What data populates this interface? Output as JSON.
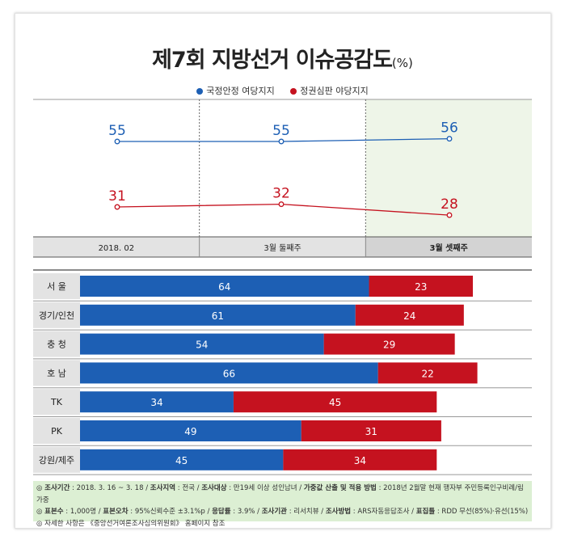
{
  "title": "제7회 지방선거 이슈공감도",
  "title_unit": "(%)",
  "legend": [
    {
      "label": "국정안정 여당지지",
      "color": "#1d5fb4"
    },
    {
      "label": "정권심판 야당지지",
      "color": "#c5121f"
    }
  ],
  "chart_data": [
    {
      "type": "line",
      "categories": [
        "2018. 02",
        "3월 둘째주",
        "3월 셋째주"
      ],
      "series": [
        {
          "name": "국정안정 여당지지",
          "color": "#1d5fb4",
          "values": [
            55,
            55,
            56
          ]
        },
        {
          "name": "정권심판 야당지지",
          "color": "#c5121f",
          "values": [
            31,
            32,
            28
          ]
        }
      ],
      "highlight_category": "3월 셋째주"
    },
    {
      "type": "bar",
      "orientation": "horizontal",
      "stacked": true,
      "categories": [
        "서 울",
        "경기/인천",
        "충 청",
        "호 남",
        "TK",
        "PK",
        "강원/제주"
      ],
      "series": [
        {
          "name": "국정안정 여당지지",
          "color": "#1d5fb4",
          "values": [
            64,
            61,
            54,
            66,
            34,
            49,
            45
          ]
        },
        {
          "name": "정권심판 야당지지",
          "color": "#c5121f",
          "values": [
            23,
            24,
            29,
            22,
            45,
            31,
            34
          ]
        }
      ]
    }
  ],
  "footnote": [
    {
      "items": [
        {
          "key": "조사기간",
          "val": " : 2018. 3. 16 ~ 3. 18 / "
        },
        {
          "key": "조사지역",
          "val": " : 전국 / "
        },
        {
          "key": "조사대상",
          "val": " : 만19세 이상 성인남녀 / "
        },
        {
          "key": "가중값 산출 및 적용 방법",
          "val": " : 2018년 2월말 현재 행자부 주민등록인구비례/림가중"
        }
      ]
    },
    {
      "items": [
        {
          "key": "표본수",
          "val": " : 1,000명 / "
        },
        {
          "key": "표본오차",
          "val": " : 95%신뢰수준 ±3.1%p / "
        },
        {
          "key": "응답률",
          "val": " : 3.9% / "
        },
        {
          "key": "조사기관",
          "val": " : 리서치뷰 / "
        },
        {
          "key": "조사방법",
          "val": " : ARS자동응답조사 / "
        },
        {
          "key": "표집틀",
          "val": " : RDD 무선(85%)·유선(15%)"
        }
      ]
    },
    {
      "items": [
        {
          "key": "",
          "val": "자세한 사항은 《중앙선거여론조사심의위원회》 홈페이지 참조"
        }
      ]
    }
  ]
}
